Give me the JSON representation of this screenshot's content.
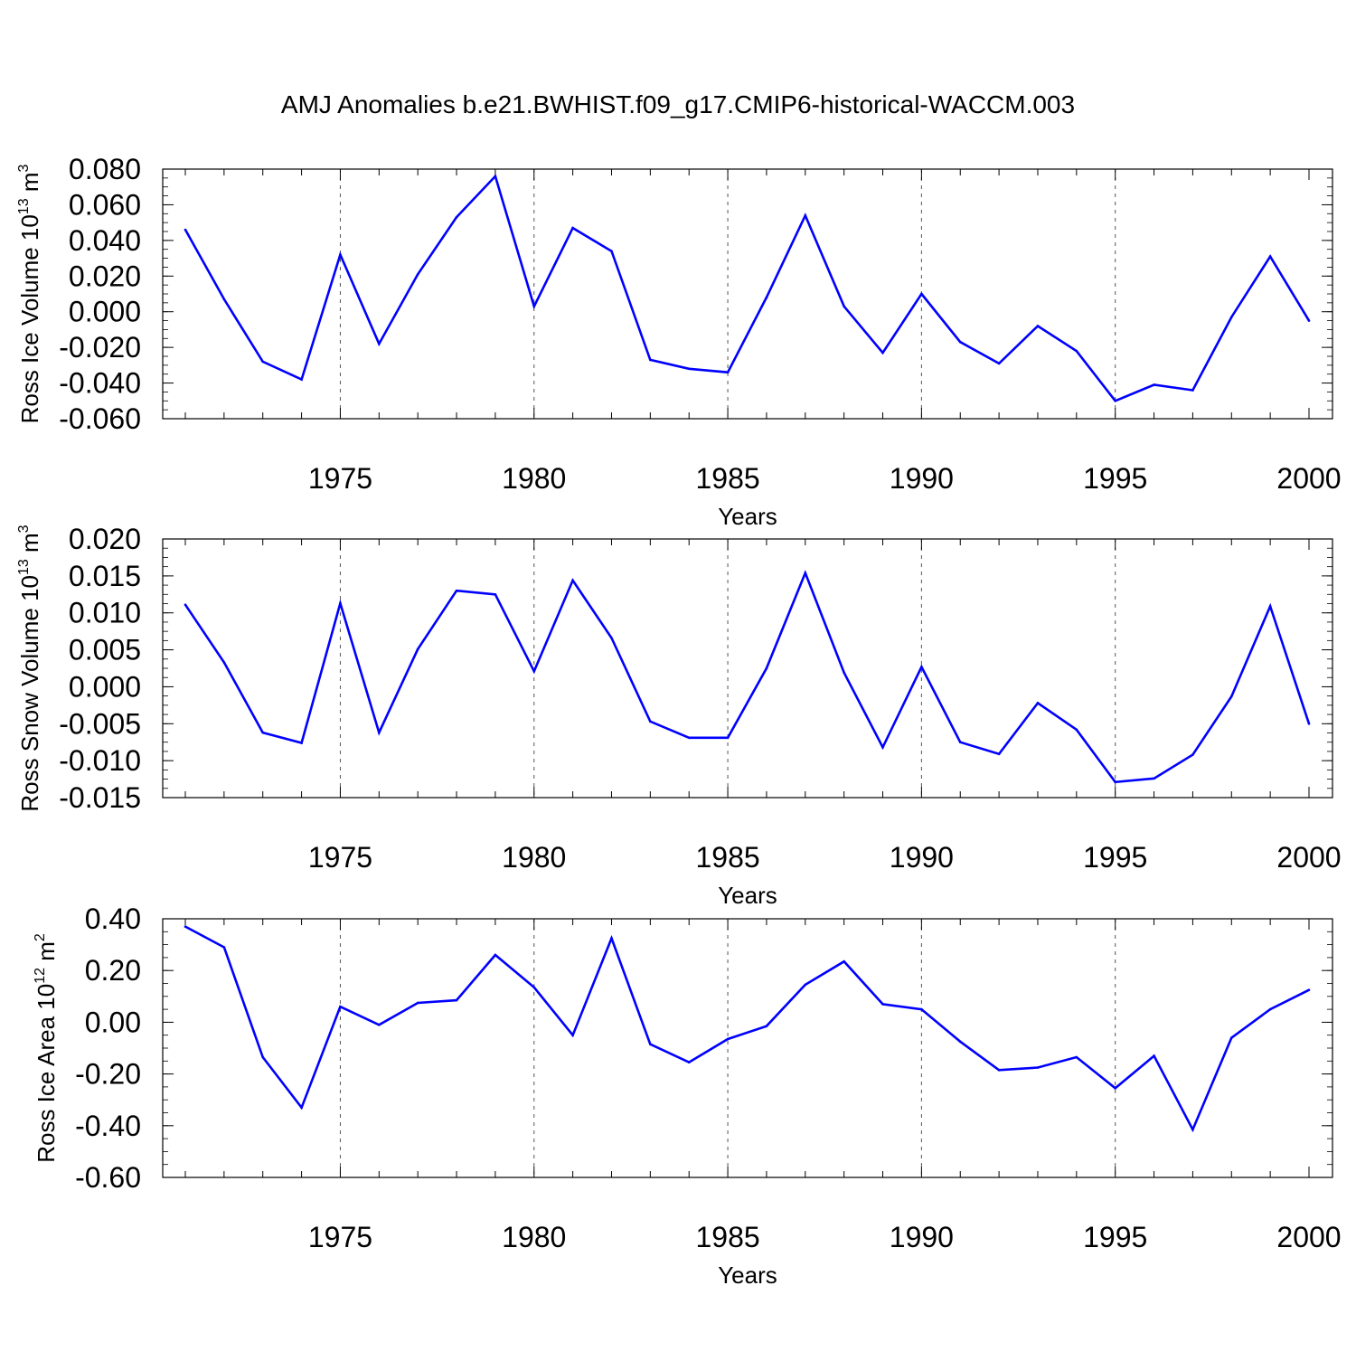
{
  "title": "AMJ Anomalies b.e21.BWHIST.f09_g17.CMIP6-historical-WACCM.003",
  "colors": {
    "series": "#0000ff",
    "axis": "#000000",
    "grid": "#555555"
  },
  "chart_data": [
    {
      "type": "line",
      "ylabel_text": "Ross Ice Volume 10",
      "ylabel_exp": "13",
      "ylabel_unit": " m",
      "ylabel_unit_exp": "3",
      "xlabel": "Years",
      "xlim": [
        1971,
        2000
      ],
      "ylim": [
        -0.06,
        0.08
      ],
      "yticks": [
        -0.06,
        -0.04,
        -0.02,
        0.0,
        0.02,
        0.04,
        0.06,
        0.08
      ],
      "ytick_labels": [
        "-0.060",
        "-0.040",
        "-0.020",
        "0.000",
        "0.020",
        "0.040",
        "0.060",
        "0.080"
      ],
      "yminor_step": 0.005,
      "xticks": [
        1975,
        1980,
        1985,
        1990,
        1995,
        2000
      ],
      "xtick_labels": [
        "1975",
        "1980",
        "1985",
        "1990",
        "1995",
        "2000"
      ],
      "gridlines_x": [
        1975,
        1980,
        1985,
        1990,
        1995
      ],
      "series": [
        {
          "name": "Ross Ice Volume",
          "x": [
            1971,
            1972,
            1973,
            1974,
            1975,
            1976,
            1977,
            1978,
            1979,
            1980,
            1981,
            1982,
            1983,
            1984,
            1985,
            1986,
            1987,
            1988,
            1989,
            1990,
            1991,
            1992,
            1993,
            1994,
            1995,
            1996,
            1997,
            1998,
            1999,
            2000
          ],
          "values": [
            0.046,
            0.007,
            -0.028,
            -0.038,
            0.032,
            -0.018,
            0.021,
            0.053,
            0.076,
            0.003,
            0.047,
            0.034,
            -0.027,
            -0.032,
            -0.034,
            0.008,
            0.054,
            0.003,
            -0.023,
            0.01,
            -0.017,
            -0.029,
            -0.008,
            -0.022,
            -0.05,
            -0.041,
            -0.044,
            -0.003,
            0.031,
            -0.005
          ]
        }
      ]
    },
    {
      "type": "line",
      "ylabel_text": "Ross Snow Volume 10",
      "ylabel_exp": "13",
      "ylabel_unit": " m",
      "ylabel_unit_exp": "3",
      "xlabel": "Years",
      "xlim": [
        1971,
        2000
      ],
      "ylim": [
        -0.015,
        0.02
      ],
      "yticks": [
        -0.015,
        -0.01,
        -0.005,
        0.0,
        0.005,
        0.01,
        0.015,
        0.02
      ],
      "ytick_labels": [
        "-0.015",
        "-0.010",
        "-0.005",
        "0.000",
        "0.005",
        "0.010",
        "0.015",
        "0.020"
      ],
      "yminor_step": 0.00125,
      "xticks": [
        1975,
        1980,
        1985,
        1990,
        1995,
        2000
      ],
      "xtick_labels": [
        "1975",
        "1980",
        "1985",
        "1990",
        "1995",
        "2000"
      ],
      "gridlines_x": [
        1975,
        1980,
        1985,
        1990,
        1995
      ],
      "series": [
        {
          "name": "Ross Snow Volume",
          "x": [
            1971,
            1972,
            1973,
            1974,
            1975,
            1976,
            1977,
            1978,
            1979,
            1980,
            1981,
            1982,
            1983,
            1984,
            1985,
            1986,
            1987,
            1988,
            1989,
            1990,
            1991,
            1992,
            1993,
            1994,
            1995,
            1996,
            1997,
            1998,
            1999,
            2000
          ],
          "values": [
            0.0111,
            0.0033,
            -0.0062,
            -0.0076,
            0.0113,
            -0.0062,
            0.0051,
            0.013,
            0.0125,
            0.0021,
            0.0144,
            0.0066,
            -0.0047,
            -0.0069,
            -0.0069,
            0.0025,
            0.0154,
            0.0019,
            -0.0082,
            0.0027,
            -0.0075,
            -0.0091,
            -0.0022,
            -0.0058,
            -0.0129,
            -0.0124,
            -0.0092,
            -0.0013,
            0.0109,
            -0.005
          ]
        }
      ]
    },
    {
      "type": "line",
      "ylabel_text": "Ross Ice Area 10",
      "ylabel_exp": "12",
      "ylabel_unit": " m",
      "ylabel_unit_exp": "2",
      "xlabel": "Years",
      "xlim": [
        1971,
        2000
      ],
      "ylim": [
        -0.6,
        0.4
      ],
      "yticks": [
        -0.6,
        -0.4,
        -0.2,
        0.0,
        0.2,
        0.4
      ],
      "ytick_labels": [
        "-0.60",
        "-0.40",
        "-0.20",
        "0.00",
        "0.20",
        "0.40"
      ],
      "yminor_step": 0.05,
      "xticks": [
        1975,
        1980,
        1985,
        1990,
        1995,
        2000
      ],
      "xtick_labels": [
        "1975",
        "1980",
        "1985",
        "1990",
        "1995",
        "2000"
      ],
      "gridlines_x": [
        1975,
        1980,
        1985,
        1990,
        1995
      ],
      "series": [
        {
          "name": "Ross Ice Area",
          "x": [
            1971,
            1972,
            1973,
            1974,
            1975,
            1976,
            1977,
            1978,
            1979,
            1980,
            1981,
            1982,
            1983,
            1984,
            1985,
            1986,
            1987,
            1988,
            1989,
            1990,
            1991,
            1992,
            1993,
            1994,
            1995,
            1996,
            1997,
            1998,
            1999,
            2000
          ],
          "values": [
            0.37,
            0.29,
            -0.135,
            -0.33,
            0.06,
            -0.01,
            0.075,
            0.085,
            0.26,
            0.135,
            -0.05,
            0.325,
            -0.085,
            -0.155,
            -0.065,
            -0.015,
            0.145,
            0.235,
            0.07,
            0.05,
            -0.075,
            -0.185,
            -0.175,
            -0.135,
            -0.255,
            -0.13,
            -0.415,
            -0.06,
            0.05,
            0.125
          ]
        }
      ]
    }
  ]
}
